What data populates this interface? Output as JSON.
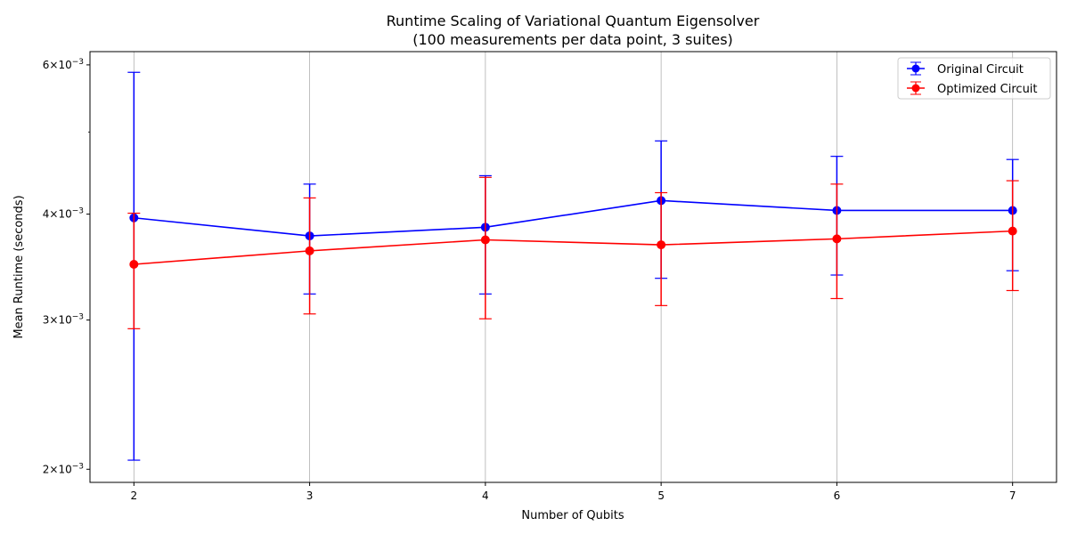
{
  "chart_data": {
    "type": "line",
    "title": "Runtime Scaling of Variational Quantum Eigensolver",
    "subtitle": "(100 measurements per data point, 3 suites)",
    "xlabel": "Number of Qubits",
    "ylabel": "Mean Runtime (seconds)",
    "yscale": "log",
    "xlim": [
      1.75,
      7.25
    ],
    "ylim": [
      0.00193,
      0.00622
    ],
    "x": [
      2,
      3,
      4,
      5,
      6,
      7
    ],
    "x_ticks": [
      "2",
      "3",
      "4",
      "5",
      "6",
      "7"
    ],
    "y_ticks": [
      {
        "value": 0.002,
        "base": "2",
        "exp": "−3"
      },
      {
        "value": 0.003,
        "base": "3",
        "exp": "−3"
      },
      {
        "value": 0.004,
        "base": "4",
        "exp": "−3"
      },
      {
        "value": 0.006,
        "base": "6",
        "exp": "−3"
      }
    ],
    "y_minor_ticks": [
      0.005
    ],
    "times_sign": "×10",
    "grid": "x-major",
    "legend_position": "upper right",
    "series": [
      {
        "name": "Original Circuit",
        "color": "#0000ff",
        "values": [
          0.00396,
          0.00377,
          0.00386,
          0.00415,
          0.00404,
          0.00404
        ],
        "err_low": [
          0.00205,
          0.00322,
          0.00322,
          0.00336,
          0.00339,
          0.00343
        ],
        "err_high": [
          0.00588,
          0.00434,
          0.00444,
          0.00488,
          0.00468,
          0.00464
        ]
      },
      {
        "name": "Optimized Circuit",
        "color": "#ff0000",
        "values": [
          0.00349,
          0.00362,
          0.00373,
          0.00368,
          0.00374,
          0.00382
        ],
        "err_low": [
          0.00293,
          0.00305,
          0.00301,
          0.00312,
          0.00318,
          0.00325
        ],
        "err_high": [
          0.00401,
          0.00418,
          0.00442,
          0.00424,
          0.00434,
          0.00438
        ]
      }
    ]
  }
}
